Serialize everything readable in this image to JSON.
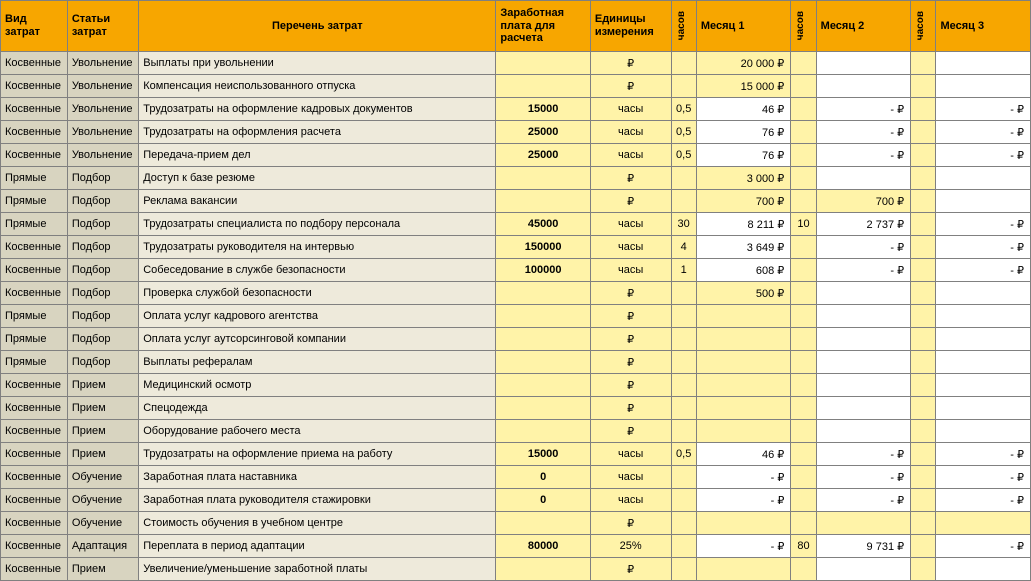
{
  "colors": {
    "header_bg": "#f7a600",
    "col_type_bg": "#d8d4c0",
    "col_desc_bg": "#eeeadb",
    "highlight_bg": "#fff3a8",
    "border": "#808080"
  },
  "headers": {
    "type": "Вид затрат",
    "article": "Статьи затрат",
    "desc": "Перечень затрат",
    "salary": "Заработная плата для расчета",
    "unit": "Единицы измерения",
    "hours": "часов",
    "m1": "Месяц 1",
    "m2": "Месяц 2",
    "m3": "Месяц 3"
  },
  "rows": [
    {
      "type": "Косвенные",
      "art": "Увольнение",
      "desc": "Выплаты при увольнении",
      "sal": "",
      "unit": "₽",
      "h1": "",
      "m1": "20 000 ₽",
      "m1hl": true,
      "h2": "",
      "m2": "",
      "h3": "",
      "m3": ""
    },
    {
      "type": "Косвенные",
      "art": "Увольнение",
      "desc": "Компенсация неиспользованного отпуска",
      "sal": "",
      "unit": "₽",
      "h1": "",
      "m1": "15 000 ₽",
      "m1hl": true,
      "h2": "",
      "m2": "",
      "h3": "",
      "m3": ""
    },
    {
      "type": "Косвенные",
      "art": "Увольнение",
      "desc": "Трудозатраты на оформление кадровых документов",
      "sal": "15000",
      "unit": "часы",
      "h1": "0,5",
      "m1": "46 ₽",
      "h2": "",
      "m2": "-   ₽",
      "h3": "",
      "m3": "-   ₽"
    },
    {
      "type": "Косвенные",
      "art": "Увольнение",
      "desc": "Трудозатраты на оформления расчета",
      "sal": "25000",
      "unit": "часы",
      "h1": "0,5",
      "m1": "76 ₽",
      "h2": "",
      "m2": "-   ₽",
      "h3": "",
      "m3": "-   ₽"
    },
    {
      "type": "Косвенные",
      "art": "Увольнение",
      "desc": "Передача-прием дел",
      "sal": "25000",
      "unit": "часы",
      "h1": "0,5",
      "m1": "76 ₽",
      "h2": "",
      "m2": "-   ₽",
      "h3": "",
      "m3": "-   ₽"
    },
    {
      "type": "Прямые",
      "art": "Подбор",
      "desc": "Доступ к базе резюме",
      "sal": "",
      "unit": "₽",
      "h1": "",
      "m1": "3 000 ₽",
      "m1hl": true,
      "h2": "",
      "m2": "",
      "h3": "",
      "m3": ""
    },
    {
      "type": "Прямые",
      "art": "Подбор",
      "desc": "Реклама вакансии",
      "sal": "",
      "unit": "₽",
      "h1": "",
      "m1": "700 ₽",
      "m1hl": true,
      "h2": "",
      "m2": "700 ₽",
      "m2hl": true,
      "h3": "",
      "m3": ""
    },
    {
      "type": "Прямые",
      "art": "Подбор",
      "desc": "Трудозатраты специалиста по подбору персонала",
      "sal": "45000",
      "unit": "часы",
      "h1": "30",
      "m1": "8 211 ₽",
      "h2": "10",
      "m2": "2 737 ₽",
      "h3": "",
      "m3": "-   ₽"
    },
    {
      "type": "Косвенные",
      "art": "Подбор",
      "desc": "Трудозатраты руководителя на интервью",
      "sal": "150000",
      "unit": "часы",
      "h1": "4",
      "m1": "3 649 ₽",
      "h2": "",
      "m2": "-   ₽",
      "h3": "",
      "m3": "-   ₽"
    },
    {
      "type": "Косвенные",
      "art": "Подбор",
      "desc": "Собеседование в службе безопасности",
      "sal": "100000",
      "unit": "часы",
      "h1": "1",
      "m1": "608 ₽",
      "h2": "",
      "m2": "-   ₽",
      "h3": "",
      "m3": "-   ₽"
    },
    {
      "type": "Косвенные",
      "art": "Подбор",
      "desc": "Проверка службой безопасности",
      "sal": "",
      "unit": "₽",
      "h1": "",
      "m1": "500 ₽",
      "m1hl": true,
      "h2": "",
      "m2": "",
      "h3": "",
      "m3": ""
    },
    {
      "type": "Прямые",
      "art": "Подбор",
      "desc": "Оплата услуг кадрового агентства",
      "sal": "",
      "unit": "₽",
      "h1": "",
      "m1": "",
      "m1hl": true,
      "h2": "",
      "m2": "",
      "h3": "",
      "m3": ""
    },
    {
      "type": "Прямые",
      "art": "Подбор",
      "desc": "Оплата услуг аутсорсинговой компании",
      "sal": "",
      "unit": "₽",
      "h1": "",
      "m1": "",
      "m1hl": true,
      "h2": "",
      "m2": "",
      "h3": "",
      "m3": ""
    },
    {
      "type": "Прямые",
      "art": "Подбор",
      "desc": "Выплаты рефералам",
      "sal": "",
      "unit": "₽",
      "h1": "",
      "m1": "",
      "m1hl": true,
      "h2": "",
      "m2": "",
      "h3": "",
      "m3": ""
    },
    {
      "type": "Косвенные",
      "art": "Прием",
      "desc": "Медицинский осмотр",
      "sal": "",
      "unit": "₽",
      "h1": "",
      "m1": "",
      "m1hl": true,
      "h2": "",
      "m2": "",
      "h3": "",
      "m3": ""
    },
    {
      "type": "Косвенные",
      "art": "Прием",
      "desc": "Спецодежда",
      "sal": "",
      "unit": "₽",
      "h1": "",
      "m1": "",
      "m1hl": true,
      "h2": "",
      "m2": "",
      "h3": "",
      "m3": ""
    },
    {
      "type": "Косвенные",
      "art": "Прием",
      "desc": "Оборудование рабочего места",
      "sal": "",
      "unit": "₽",
      "h1": "",
      "m1": "",
      "m1hl": true,
      "h2": "",
      "m2": "",
      "h3": "",
      "m3": ""
    },
    {
      "type": "Косвенные",
      "art": "Прием",
      "desc": "Трудозатраты на оформление приема на работу",
      "sal": "15000",
      "unit": "часы",
      "h1": "0,5",
      "m1": "46 ₽",
      "h2": "",
      "m2": "-   ₽",
      "h3": "",
      "m3": "-   ₽"
    },
    {
      "type": "Косвенные",
      "art": "Обучение",
      "desc": "Заработная плата наставника",
      "sal": "0",
      "unit": "часы",
      "h1": "",
      "m1": "-   ₽",
      "h2": "",
      "m2": "-   ₽",
      "h3": "",
      "m3": "-   ₽"
    },
    {
      "type": "Косвенные",
      "art": "Обучение",
      "desc": "Заработная плата руководителя стажировки",
      "sal": "0",
      "unit": "часы",
      "h1": "",
      "m1": "-   ₽",
      "h2": "",
      "m2": "-   ₽",
      "h3": "",
      "m3": "-   ₽"
    },
    {
      "type": "Косвенные",
      "art": "Обучение",
      "desc": "Стоимость обучения в учебном центре",
      "sal": "",
      "unit": "₽",
      "h1": "",
      "m1": "",
      "m1hl": true,
      "h2": "",
      "m2": "",
      "m2hl": true,
      "h3": "",
      "m3": "",
      "m3hl": true
    },
    {
      "type": "Косвенные",
      "art": "Адаптация",
      "desc": "Переплата в период адаптации",
      "sal": "80000",
      "unit": "25%",
      "h1": "",
      "m1": "-   ₽",
      "h2": "80",
      "m2": "9 731 ₽",
      "h3": "",
      "m3": "-   ₽"
    },
    {
      "type": "Косвенные",
      "art": "Прием",
      "desc": "Увеличение/уменьшение заработной платы",
      "sal": "",
      "unit": "₽",
      "h1": "",
      "m1": "",
      "m1hl": true,
      "h2": "",
      "m2": "",
      "h3": "",
      "m3": ""
    }
  ]
}
